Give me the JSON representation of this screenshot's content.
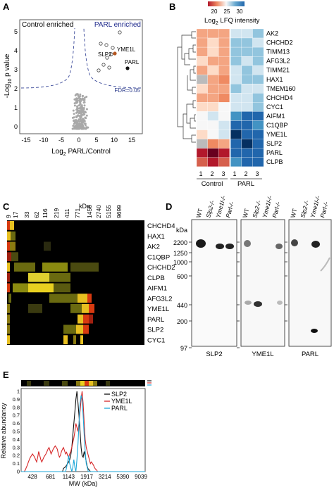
{
  "panels": {
    "a": {
      "letter": "A",
      "control_label": "Control enriched",
      "parl_label": "PARL enriched",
      "fdr_label": "FDR=0.05",
      "ylabel_main": "-Log",
      "ylabel_sub": "10",
      "ylabel_rest": " p value",
      "xlabel_main": "Log",
      "xlabel_sub": "2",
      "xlabel_rest": " PARL/Control",
      "colors": {
        "control": "#111111",
        "parl": "#1f2a8c",
        "fdr": "#2a3a8a",
        "highlight": "#b5561f",
        "dots": "#9a9a9a"
      }
    },
    "b": {
      "letter": "B",
      "legend_ticks": [
        "20",
        "25",
        "30"
      ],
      "legend_title_main": "Log",
      "legend_title_sub": "2",
      "legend_title_rest": " LFQ intensity",
      "proteins": [
        "AK2",
        "CHCHD2",
        "TIMM13",
        "AFG3L2",
        "TIMM21",
        "HAX1",
        "TMEM160",
        "CHCHD4",
        "CYC1",
        "AIFM1",
        "C1QBP",
        "YME1L",
        "SLP2",
        "PARL",
        "CLPB"
      ],
      "replicates": [
        "1",
        "2",
        "3",
        "1",
        "2",
        "3"
      ],
      "group_labels": [
        "Control",
        "PARL"
      ],
      "colors": {
        "low": "#2166ac",
        "mid": "#f7f7f7",
        "high": "#b2182b"
      }
    },
    "c": {
      "letter": "C",
      "kda_label": "kDa",
      "ticks": [
        "9",
        "17",
        "33",
        "62",
        "116",
        "219",
        "411",
        "771",
        "1456",
        "2740",
        "5155",
        "9699"
      ],
      "proteins": [
        "CHCHD4",
        "HAX1",
        "AK2",
        "C1QBP",
        "CHCHD2",
        "CLPB",
        "AIFM1",
        "AFG3L2",
        "YME1L",
        "PARL",
        "SLP2",
        "CYC1"
      ]
    },
    "d": {
      "letter": "D",
      "kda_label": "kDa",
      "mw_ticks": [
        "2200",
        "1250",
        "1000",
        "600",
        "440",
        "200",
        "97"
      ],
      "lanes": [
        "WT",
        "Slp2-/-",
        "Yme1l-/-",
        "Parl-/-"
      ],
      "blots": [
        "SLP2",
        "YME1L",
        "PARL"
      ]
    },
    "e": {
      "letter": "E",
      "ylabel": "Relative abundancy",
      "xlabel": "MW (kDa)"
    }
  },
  "chart_data": {
    "type": "line",
    "title": "",
    "xlabel": "MW (kDa)",
    "ylabel": "Relative abundancy",
    "x_ticks": [
      "428",
      "681",
      "1143",
      "1917",
      "3214",
      "5390",
      "9039"
    ],
    "y_ticks": [
      "0",
      "0.1",
      "0.2",
      "0.3",
      "0.4",
      "0.5",
      "0.6",
      "0.7",
      "0.8",
      "0.9",
      "1"
    ],
    "ylim": [
      0,
      1
    ],
    "x": [
      0,
      1,
      2,
      3,
      4,
      5,
      6,
      7,
      8,
      9,
      10,
      11,
      12,
      13,
      14,
      15,
      16,
      17,
      18,
      19,
      20,
      21,
      22,
      23,
      24,
      25,
      26,
      27,
      28,
      29,
      30,
      31,
      32,
      33,
      34,
      35,
      36,
      37,
      38,
      39,
      40,
      41,
      42,
      43,
      44,
      45,
      46,
      47,
      48,
      49,
      50,
      51,
      52,
      53,
      54,
      55,
      56,
      57,
      58,
      59,
      60,
      61,
      62,
      63,
      64,
      65,
      66,
      67,
      68,
      69,
      70,
      71,
      72,
      73,
      74,
      75,
      76,
      77,
      78,
      79,
      80,
      81,
      82,
      83,
      84,
      85,
      86,
      87,
      88,
      89,
      90,
      91,
      92,
      93,
      94,
      95,
      96,
      97,
      98,
      99,
      100,
      101,
      102,
      103,
      104,
      105,
      106,
      107,
      108,
      109,
      110,
      111,
      112,
      113,
      114,
      115,
      116,
      117,
      118,
      119,
      120
    ],
    "series": [
      {
        "name": "SLP2",
        "color": "#111111",
        "values": [
          0,
          0,
          0,
          0,
          0,
          0,
          0,
          0,
          0,
          0,
          0,
          0,
          0,
          0,
          0,
          0,
          0,
          0,
          0,
          0,
          0,
          0,
          0,
          0,
          0,
          0,
          0,
          0,
          0,
          0,
          0,
          0,
          0,
          0,
          0,
          0,
          0,
          0,
          0,
          0,
          0,
          0.04,
          0.05,
          0.06,
          0.08,
          0.1,
          0.12,
          0.15,
          0.2,
          0.3,
          0.45,
          0.6,
          0.75,
          0.9,
          1.0,
          0.85,
          0.7,
          0.5,
          0.3,
          0.2,
          0.18,
          0.25,
          0.2,
          0.12,
          0.06,
          0.03,
          0.02,
          0,
          0,
          0,
          0,
          0,
          0,
          0,
          0,
          0,
          0,
          0,
          0,
          0,
          0,
          0,
          0,
          0,
          0,
          0,
          0,
          0,
          0,
          0,
          0,
          0,
          0,
          0,
          0,
          0,
          0,
          0,
          0,
          0,
          0,
          0,
          0,
          0,
          0,
          0,
          0,
          0,
          0,
          0,
          0,
          0,
          0,
          0,
          0,
          0,
          0,
          0,
          0,
          0,
          0
        ]
      },
      {
        "name": "YME1L",
        "color": "#d62728",
        "values": [
          0,
          0,
          0,
          0,
          0.02,
          0.05,
          0.08,
          0.12,
          0.15,
          0.18,
          0.2,
          0.22,
          0.2,
          0.18,
          0.15,
          0.12,
          0.18,
          0.25,
          0.2,
          0.15,
          0.12,
          0.15,
          0.18,
          0.2,
          0.22,
          0.25,
          0.28,
          0.3,
          0.26,
          0.22,
          0.25,
          0.28,
          0.3,
          0.32,
          0.3,
          0.28,
          0.22,
          0.18,
          0.2,
          0.25,
          0.28,
          0.3,
          0.26,
          0.22,
          0.24,
          0.2,
          0.18,
          0.22,
          0.25,
          0.3,
          0.36,
          0.42,
          0.5,
          0.6,
          0.55,
          0.5,
          0.6,
          0.75,
          0.9,
          1.0,
          0.85,
          0.6,
          0.4,
          0.3,
          0.25,
          0.2,
          0.15,
          0.1,
          0.12,
          0.1,
          0.08,
          0.05,
          0.03,
          0.02,
          0,
          0,
          0,
          0,
          0,
          0,
          0,
          0,
          0,
          0,
          0,
          0,
          0,
          0,
          0,
          0,
          0,
          0,
          0,
          0,
          0,
          0,
          0,
          0,
          0,
          0,
          0,
          0,
          0,
          0,
          0,
          0,
          0,
          0,
          0,
          0,
          0,
          0,
          0,
          0,
          0,
          0,
          0,
          0,
          0,
          0,
          0
        ]
      },
      {
        "name": "PARL",
        "color": "#1ea7d8",
        "values": [
          0,
          0,
          0,
          0,
          0,
          0,
          0,
          0,
          0,
          0,
          0,
          0,
          0,
          0,
          0,
          0,
          0,
          0,
          0,
          0,
          0,
          0,
          0,
          0,
          0,
          0,
          0,
          0,
          0,
          0,
          0,
          0,
          0,
          0,
          0,
          0,
          0,
          0,
          0,
          0,
          0,
          0,
          0,
          0,
          0.05,
          0.12,
          0.2,
          0.1,
          0.05,
          0,
          0.05,
          0.15,
          0.05,
          0,
          0.15,
          0.35,
          0.6,
          0.85,
          0.95,
          0.9,
          0.7,
          0.45,
          0.25,
          0.1,
          0.05,
          0,
          0,
          0,
          0,
          0,
          0,
          0,
          0,
          0,
          0,
          0,
          0,
          0,
          0,
          0,
          0,
          0,
          0,
          0,
          0,
          0,
          0,
          0,
          0,
          0,
          0,
          0,
          0,
          0,
          0,
          0,
          0,
          0,
          0,
          0,
          0,
          0,
          0,
          0,
          0,
          0,
          0,
          0,
          0,
          0,
          0,
          0,
          0,
          0,
          0,
          0,
          0,
          0,
          0,
          0,
          0
        ]
      }
    ]
  }
}
